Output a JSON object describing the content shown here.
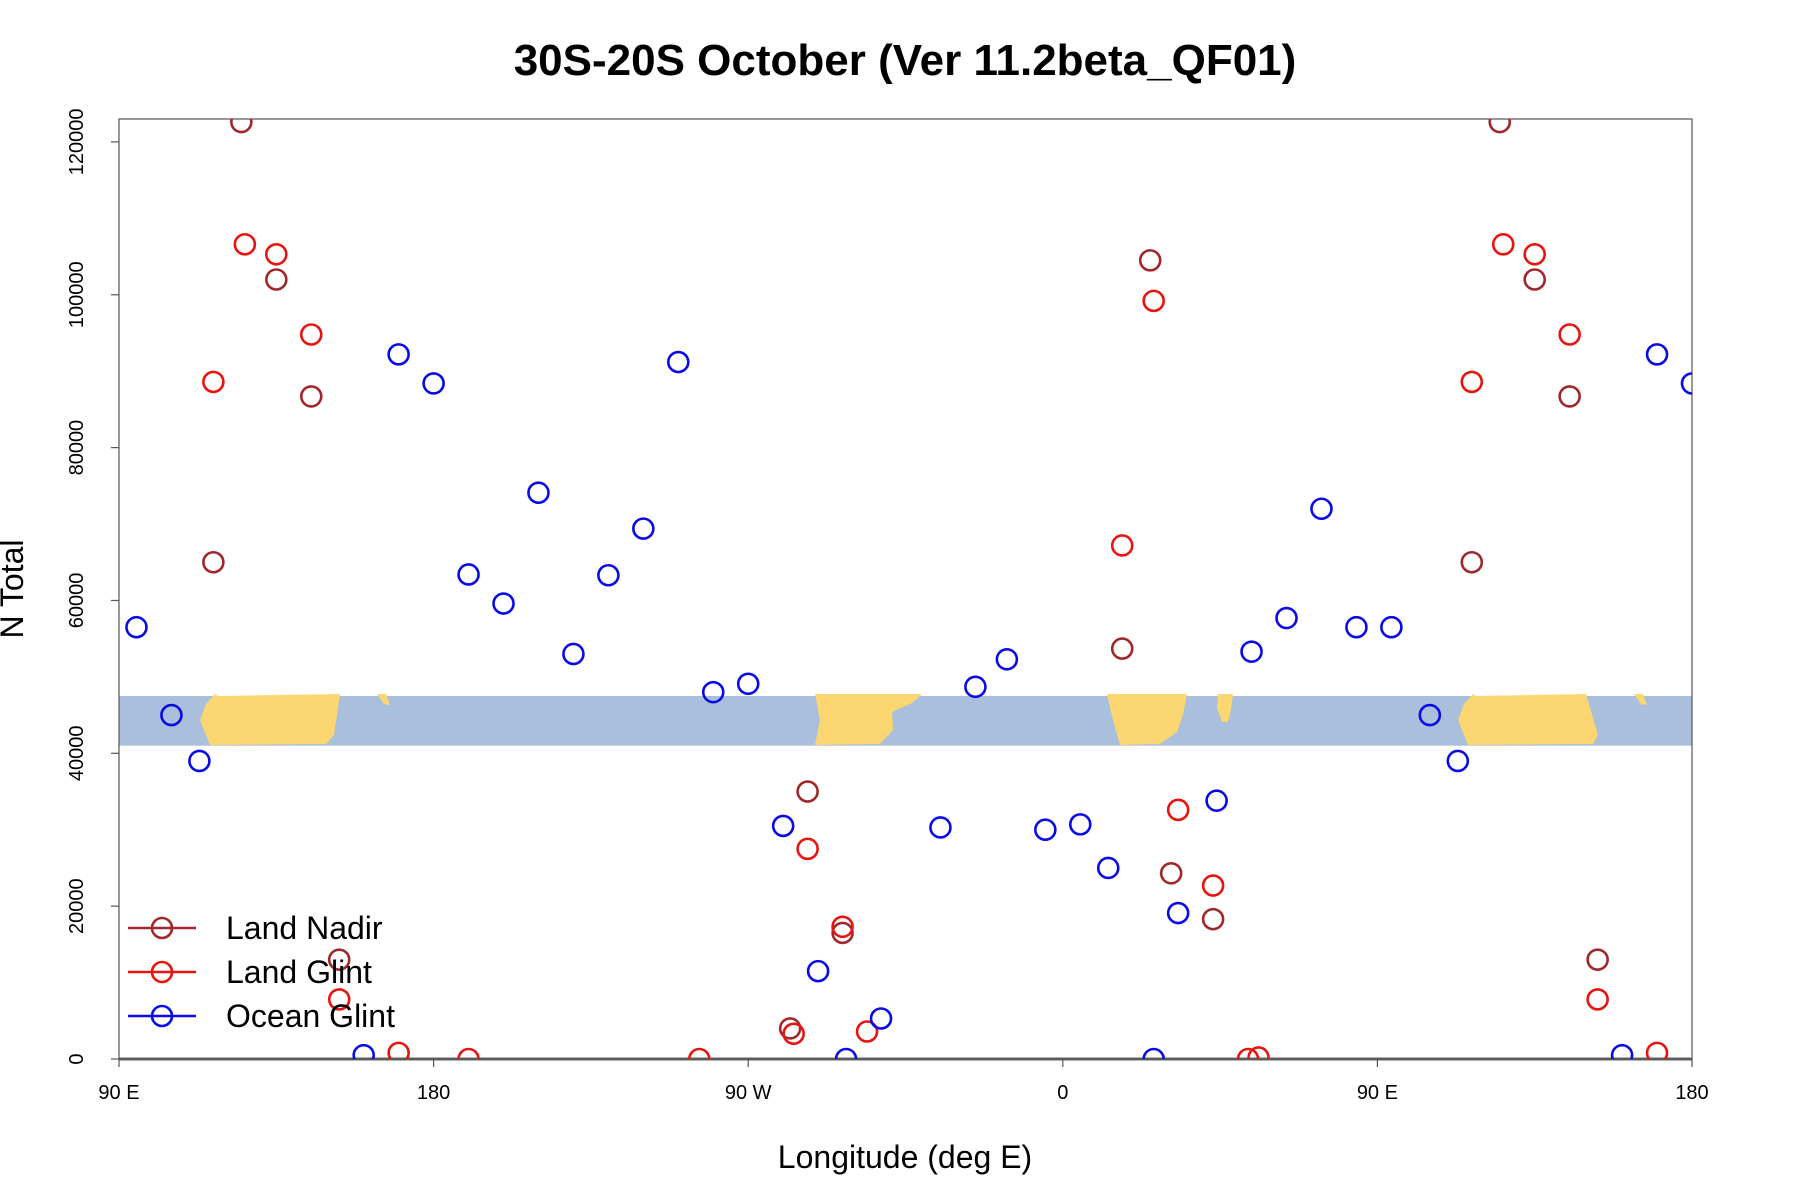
{
  "chart_data": {
    "type": "scatter",
    "title": "30S-20S October (Ver 11.2beta_QF01)",
    "xlabel": "Longitude (deg E)",
    "ylabel": "N Total",
    "xlim": [
      85,
      535
    ],
    "ylim": [
      0,
      123000
    ],
    "x_ticks": [
      {
        "value": 90,
        "label": "90 E"
      },
      {
        "value": 180,
        "label": "180"
      },
      {
        "value": 270,
        "label": "90 W"
      },
      {
        "value": 360,
        "label": "0"
      },
      {
        "value": 450,
        "label": "90 E"
      },
      {
        "value": 540,
        "label": "180"
      }
    ],
    "y_ticks": [
      {
        "value": 0,
        "label": "0"
      },
      {
        "value": 20000,
        "label": "20000"
      },
      {
        "value": 40000,
        "label": "40000"
      },
      {
        "value": 60000,
        "label": "60000"
      },
      {
        "value": 80000,
        "label": "80000"
      },
      {
        "value": 100000,
        "label": "100000"
      },
      {
        "value": 120000,
        "label": "120000"
      }
    ],
    "grid": false,
    "legend_position": "bottom-left",
    "map_band": {
      "y_range": [
        41000,
        47500
      ],
      "ocean_color": "#a9bfdc",
      "land_color": "#fbd671"
    },
    "series": [
      {
        "name": "Land Nadir",
        "color": "#a0282d",
        "points": [
          [
            125,
            122600
          ],
          [
            117,
            65000
          ],
          [
            135,
            102000
          ],
          [
            145,
            86700
          ],
          [
            153,
            13000
          ],
          [
            287,
            35000
          ],
          [
            282,
            4000
          ],
          [
            297,
            16500
          ],
          [
            377,
            53700
          ],
          [
            385,
            104500
          ],
          [
            391,
            24300
          ],
          [
            403,
            18300
          ],
          [
            485,
            122600
          ],
          [
            477,
            65000
          ],
          [
            495,
            102000
          ],
          [
            505,
            86700
          ],
          [
            513,
            13000
          ]
        ]
      },
      {
        "name": "Land Glint",
        "color": "#e8140f",
        "points": [
          [
            126,
            106600
          ],
          [
            117,
            88600
          ],
          [
            135,
            105300
          ],
          [
            145,
            94800
          ],
          [
            153,
            7800
          ],
          [
            170,
            800
          ],
          [
            190,
            0
          ],
          [
            256,
            0
          ],
          [
            287,
            27500
          ],
          [
            283,
            3300
          ],
          [
            297,
            17300
          ],
          [
            304,
            3600
          ],
          [
            377,
            67200
          ],
          [
            386,
            99200
          ],
          [
            393,
            32600
          ],
          [
            403,
            22700
          ],
          [
            413,
            0
          ],
          [
            416,
            200
          ],
          [
            486,
            106600
          ],
          [
            477,
            88600
          ],
          [
            495,
            105300
          ],
          [
            505,
            94800
          ],
          [
            513,
            7800
          ],
          [
            530,
            800
          ]
        ]
      },
      {
        "name": "Ocean Glint",
        "color": "#0a0ae6",
        "points": [
          [
            95,
            56500
          ],
          [
            105,
            45000
          ],
          [
            113,
            39000
          ],
          [
            160,
            500
          ],
          [
            170,
            92200
          ],
          [
            180,
            88400
          ],
          [
            190,
            63400
          ],
          [
            200,
            59600
          ],
          [
            210,
            74100
          ],
          [
            220,
            53000
          ],
          [
            230,
            63300
          ],
          [
            240,
            69400
          ],
          [
            250,
            91200
          ],
          [
            260,
            48000
          ],
          [
            270,
            49100
          ],
          [
            280,
            30500
          ],
          [
            290,
            11500
          ],
          [
            298,
            0
          ],
          [
            308,
            5300
          ],
          [
            325,
            30300
          ],
          [
            335,
            48700
          ],
          [
            344,
            52300
          ],
          [
            355,
            30000
          ],
          [
            365,
            30700
          ],
          [
            373,
            25000
          ],
          [
            386,
            0
          ],
          [
            393,
            19100
          ],
          [
            404,
            33800
          ],
          [
            414,
            53300
          ],
          [
            424,
            57700
          ],
          [
            434,
            72000
          ],
          [
            444,
            56500
          ],
          [
            454,
            56500
          ],
          [
            465,
            45000
          ],
          [
            473,
            39000
          ],
          [
            520,
            500
          ],
          [
            530,
            92200
          ],
          [
            540,
            88400
          ]
        ]
      }
    ]
  }
}
